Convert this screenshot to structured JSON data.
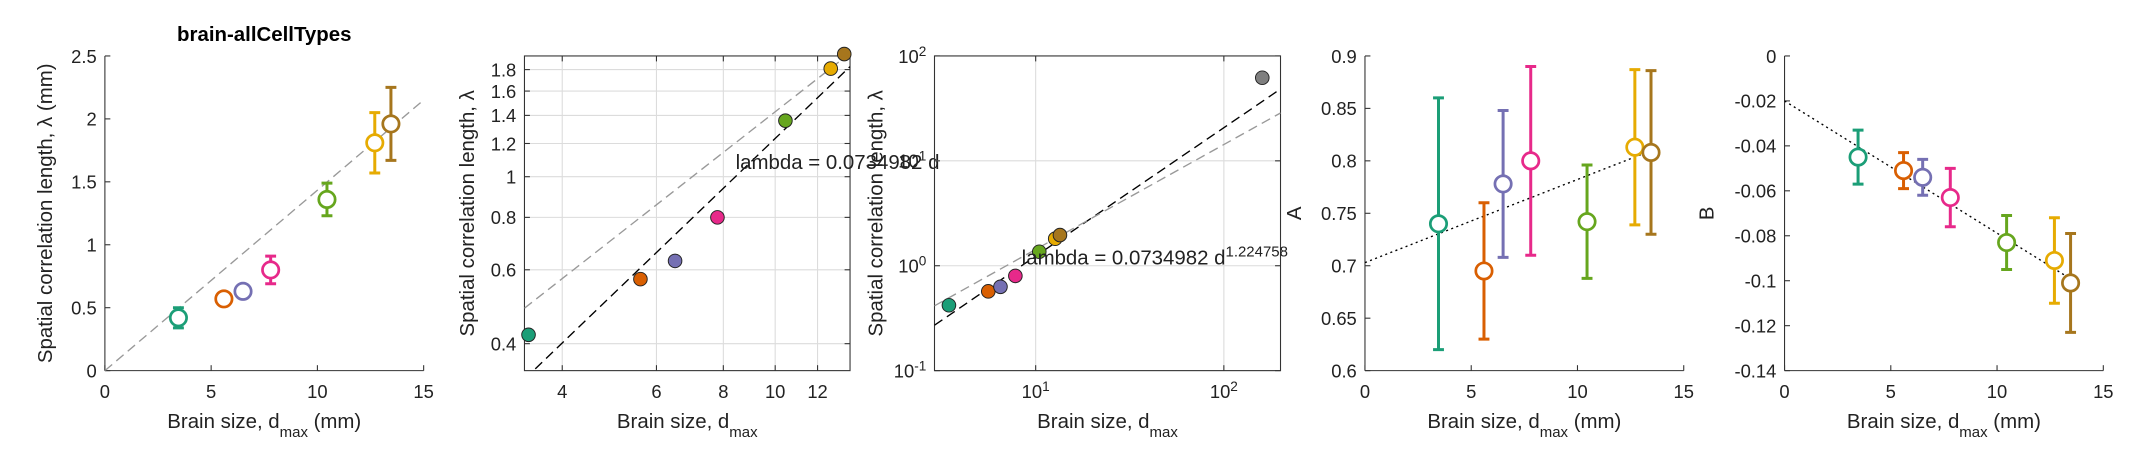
{
  "chart_data": [
    {
      "type": "errorbar",
      "title": "brain-allCellTypes",
      "xlabel": {
        "text": "Brain size, d",
        "sub": "max",
        "tail": " (mm)"
      },
      "ylabel": "Spatial correlation length, λ (mm)",
      "x": [
        3.46,
        5.6,
        6.5,
        7.8,
        10.45,
        12.7,
        13.46
      ],
      "values": [
        0.42,
        0.57,
        0.63,
        0.8,
        1.36,
        1.81,
        1.96
      ],
      "errors": [
        0.08,
        0.04,
        0.05,
        0.11,
        0.13,
        0.24,
        0.29
      ],
      "colors": [
        "#1b9e77",
        "#d95f02",
        "#7570b3",
        "#e7298a",
        "#66a61e",
        "#e6ab02",
        "#a6761d"
      ],
      "xlim": [
        0,
        15
      ],
      "xticks": [
        0,
        5,
        10,
        15
      ],
      "ylim": [
        0,
        2.5
      ],
      "yticks": [
        0,
        0.5,
        1,
        1.5,
        2,
        2.5
      ],
      "lines": [
        {
          "x": [
            0,
            15
          ],
          "y": [
            0,
            2.15
          ],
          "color": "#999999",
          "style": "dashed"
        }
      ],
      "grid": false,
      "box": false
    },
    {
      "type": "scatter",
      "xscale": "log",
      "yscale": "log",
      "xlabel": {
        "text": "Brain size, d",
        "sub": "max"
      },
      "ylabel": "Spatial correlation length, λ",
      "x": [
        3.46,
        5.6,
        6.5,
        7.8,
        10.45,
        12.7,
        13.46
      ],
      "values": [
        0.42,
        0.57,
        0.63,
        0.8,
        1.36,
        1.81,
        1.96
      ],
      "colors": [
        "#1b9e77",
        "#d95f02",
        "#7570b3",
        "#e7298a",
        "#66a61e",
        "#e6ab02",
        "#a6761d"
      ],
      "xlim": [
        3.4,
        13.8
      ],
      "xticks": [
        4,
        6,
        8,
        10,
        12
      ],
      "ylim": [
        0.345,
        1.94
      ],
      "yticks": [
        0.4,
        0.6,
        0.8,
        1,
        1.2,
        1.4,
        1.6,
        1.8
      ],
      "lines": [
        {
          "x": [
            3.4,
            13.8
          ],
          "y": [
            0.329,
            1.83
          ],
          "color": "#000000",
          "style": "dashed"
        },
        {
          "x": [
            3.4,
            13.8
          ],
          "y": [
            0.486,
            1.97
          ],
          "color": "#999999",
          "style": "dashed"
        }
      ],
      "annotation": {
        "text": "lambda = 0.0734982 d"
      },
      "grid": true,
      "box": true
    },
    {
      "type": "scatter",
      "xscale": "log",
      "yscale": "log",
      "xlabel": {
        "text": "Brain size, d",
        "sub": "max"
      },
      "ylabel": "Spatial correlation length, λ",
      "x": [
        3.46,
        5.6,
        6.5,
        7.8,
        10.45,
        12.7,
        13.46,
        160
      ],
      "values": [
        0.42,
        0.57,
        0.63,
        0.8,
        1.36,
        1.81,
        1.96,
        62
      ],
      "colors": [
        "#1b9e77",
        "#d95f02",
        "#7570b3",
        "#e7298a",
        "#66a61e",
        "#e6ab02",
        "#a6761d",
        "#7f7f7f"
      ],
      "xlim": [
        2.9,
        200
      ],
      "xticks": [
        {
          "value": 10,
          "label": "10",
          "sup": "1"
        },
        {
          "value": 100,
          "label": "10",
          "sup": "2"
        }
      ],
      "ylim": [
        0.1,
        100
      ],
      "yticks": [
        {
          "value": 0.1,
          "label": "10",
          "sup": "-1"
        },
        {
          "value": 1,
          "label": "10",
          "sup": "0"
        },
        {
          "value": 10,
          "label": "10",
          "sup": "1"
        },
        {
          "value": 100,
          "label": "10",
          "sup": "2"
        }
      ],
      "lines": [
        {
          "x": [
            2.9,
            200
          ],
          "y": [
            0.271,
            48.4
          ],
          "color": "#000000",
          "style": "dashed"
        },
        {
          "x": [
            2.9,
            200
          ],
          "y": [
            0.415,
            28.6
          ],
          "color": "#999999",
          "style": "dashed"
        }
      ],
      "annotation": {
        "text": "lambda = 0.0734982 d",
        "sup": "1.224758"
      },
      "grid": true,
      "box": true
    },
    {
      "type": "errorbar",
      "xlabel": {
        "text": "Brain size, d",
        "sub": "max",
        "tail": " (mm)"
      },
      "ylabel": "A",
      "x": [
        3.46,
        5.6,
        6.5,
        7.8,
        10.45,
        12.7,
        13.46
      ],
      "values": [
        0.74,
        0.695,
        0.778,
        0.8,
        0.742,
        0.813,
        0.808
      ],
      "errors": [
        0.12,
        0.065,
        0.07,
        0.09,
        0.054,
        0.074,
        0.078
      ],
      "colors": [
        "#1b9e77",
        "#d95f02",
        "#7570b3",
        "#e7298a",
        "#66a61e",
        "#e6ab02",
        "#a6761d"
      ],
      "xlim": [
        0,
        15
      ],
      "xticks": [
        0,
        5,
        10,
        15
      ],
      "ylim": [
        0.6,
        0.9
      ],
      "yticks": [
        0.6,
        0.65,
        0.7,
        0.75,
        0.8,
        0.85,
        0.9
      ],
      "lines": [
        {
          "x": [
            0,
            13.5
          ],
          "y": [
            0.703,
            0.81
          ],
          "color": "#000000",
          "style": "dotted"
        }
      ],
      "grid": false,
      "box": false
    },
    {
      "type": "errorbar",
      "xlabel": {
        "text": "Brain size, d",
        "sub": "max",
        "tail": " (mm)"
      },
      "ylabel": "B",
      "x": [
        3.46,
        5.6,
        6.5,
        7.8,
        10.45,
        12.7,
        13.46
      ],
      "values": [
        -0.045,
        -0.051,
        -0.054,
        -0.063,
        -0.083,
        -0.091,
        -0.101
      ],
      "errors": [
        0.012,
        0.008,
        0.008,
        0.013,
        0.012,
        0.019,
        0.022
      ],
      "colors": [
        "#1b9e77",
        "#d95f02",
        "#7570b3",
        "#e7298a",
        "#66a61e",
        "#e6ab02",
        "#a6761d"
      ],
      "xlim": [
        0,
        15
      ],
      "xticks": [
        0,
        5,
        10,
        15
      ],
      "ylim": [
        -0.14,
        0
      ],
      "yticks": [
        -0.14,
        -0.12,
        -0.1,
        -0.08,
        -0.06,
        -0.04,
        -0.02,
        0
      ],
      "lines": [
        {
          "x": [
            0,
            13.6
          ],
          "y": [
            -0.02,
            -0.1
          ],
          "color": "#000000",
          "style": "dotted"
        }
      ],
      "grid": false,
      "box": false
    }
  ]
}
